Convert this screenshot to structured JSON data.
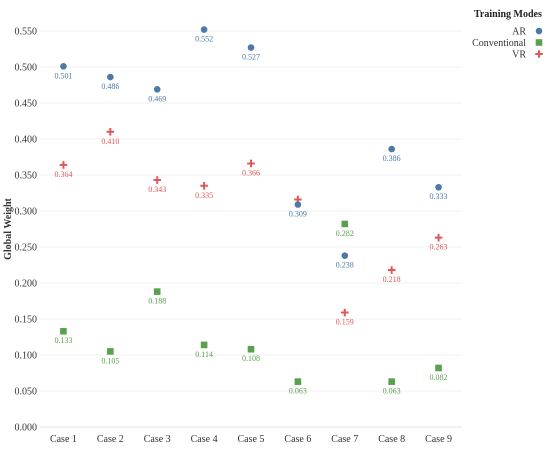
{
  "chart_data": {
    "type": "scatter",
    "title": "",
    "xlabel": "",
    "ylabel": "Global Weight",
    "ylim": [
      0,
      0.575
    ],
    "yticks": [
      "0.000",
      "0.050",
      "0.100",
      "0.150",
      "0.200",
      "0.250",
      "0.300",
      "0.350",
      "0.400",
      "0.450",
      "0.500",
      "0.550"
    ],
    "categories": [
      "Case 1",
      "Case 2",
      "Case 3",
      "Case 4",
      "Case 5",
      "Case 6",
      "Case 7",
      "Case 8",
      "Case 9"
    ],
    "grid": true,
    "legend_title": "Training Modes",
    "legend_placement": "top-right",
    "series": [
      {
        "name": "AR",
        "marker": "circle",
        "color": "#4e79a7",
        "values": [
          0.501,
          0.486,
          0.469,
          0.552,
          0.527,
          0.309,
          0.238,
          0.386,
          0.333
        ],
        "labels": [
          "0.501",
          "0.486",
          "0.469",
          "0.552",
          "0.527",
          "0.309",
          "0.238",
          "0.386",
          "0.333"
        ]
      },
      {
        "name": "Conventional",
        "marker": "square",
        "color": "#59a14f",
        "values": [
          0.133,
          0.105,
          0.188,
          0.114,
          0.108,
          0.063,
          0.282,
          0.063,
          0.082
        ],
        "labels": [
          "0.133",
          "0.105",
          "0.188",
          "0.114",
          "0.108",
          "0.063",
          "0.282",
          "0.063",
          "0.082"
        ]
      },
      {
        "name": "VR",
        "marker": "cross",
        "color": "#e15759",
        "values": [
          0.364,
          0.41,
          0.343,
          0.335,
          0.366,
          0.316,
          0.159,
          0.218,
          0.263
        ],
        "labels": [
          "0.364",
          "0.410",
          "0.343",
          "0.335",
          "0.366",
          "",
          "0.159",
          "0.218",
          "0.263"
        ]
      }
    ]
  }
}
